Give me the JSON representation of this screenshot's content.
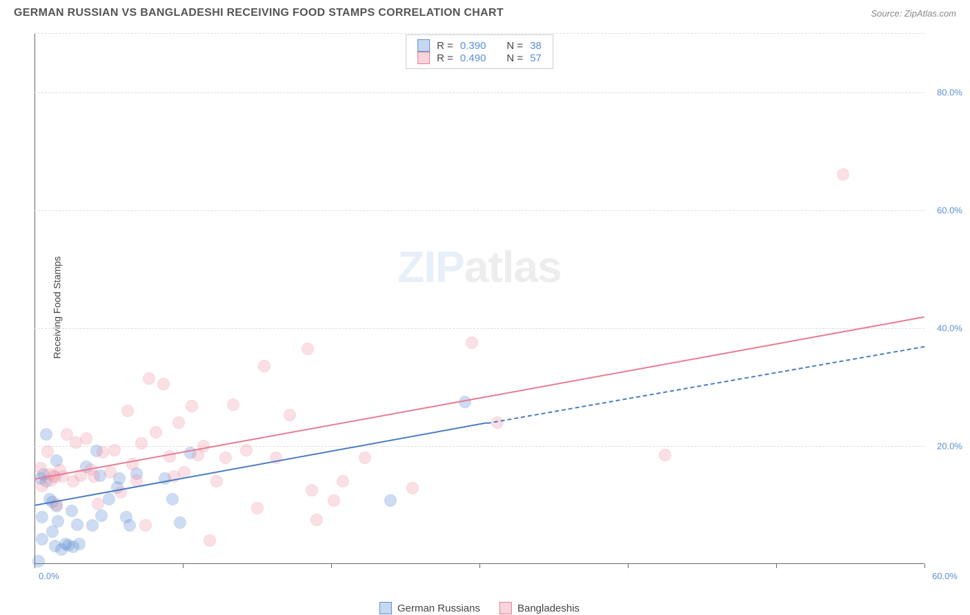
{
  "header": {
    "title": "GERMAN RUSSIAN VS BANGLADESHI RECEIVING FOOD STAMPS CORRELATION CHART",
    "source": "Source: ZipAtlas.com"
  },
  "watermark": {
    "part1": "ZIP",
    "part2": "atlas"
  },
  "y_axis": {
    "label": "Receiving Food Stamps"
  },
  "chart": {
    "type": "scatter",
    "xlim": [
      0,
      60
    ],
    "ylim": [
      0,
      90
    ],
    "x_ticks": [
      0,
      10,
      20,
      30,
      40,
      50,
      60
    ],
    "x_tick_labels": {
      "first": "0.0%",
      "last": "60.0%"
    },
    "y_grid": [
      20,
      40,
      60,
      80
    ],
    "y_tick_labels": [
      "20.0%",
      "40.0%",
      "60.0%",
      "80.0%"
    ],
    "grid_color": "#dddddd",
    "axis_color": "#666666",
    "background_color": "#ffffff",
    "marker_radius": 9,
    "marker_stroke_width": 1.5,
    "marker_fill_opacity": 0.3,
    "series": [
      {
        "name": "German Russians",
        "color": "#5b8fd6",
        "stroke": "#4a7bc2",
        "r_value": "0.390",
        "n_value": "38",
        "trend": {
          "x1": 0,
          "y1": 10,
          "x2": 30.5,
          "y2": 24,
          "dash_to_x": 60,
          "dash_to_y": 37
        },
        "points": [
          [
            0.3,
            0.5
          ],
          [
            0.4,
            14.5
          ],
          [
            0.5,
            8.0
          ],
          [
            0.5,
            4.2
          ],
          [
            0.6,
            15.2
          ],
          [
            0.8,
            22.0
          ],
          [
            0.8,
            14.0
          ],
          [
            1.0,
            11.0
          ],
          [
            1.2,
            5.5
          ],
          [
            1.2,
            10.5
          ],
          [
            1.4,
            3.0
          ],
          [
            1.5,
            17.5
          ],
          [
            1.5,
            9.8
          ],
          [
            1.6,
            7.3
          ],
          [
            1.8,
            2.4
          ],
          [
            2.1,
            3.4
          ],
          [
            2.3,
            3.2
          ],
          [
            2.5,
            9.0
          ],
          [
            2.6,
            2.9
          ],
          [
            2.9,
            6.7
          ],
          [
            3.0,
            3.4
          ],
          [
            3.5,
            16.5
          ],
          [
            3.9,
            6.5
          ],
          [
            4.2,
            19.2
          ],
          [
            4.4,
            15.0
          ],
          [
            4.5,
            8.2
          ],
          [
            5.0,
            11.0
          ],
          [
            5.6,
            13.0
          ],
          [
            5.7,
            14.5
          ],
          [
            6.2,
            8.0
          ],
          [
            6.4,
            6.5
          ],
          [
            6.9,
            15.3
          ],
          [
            8.8,
            14.5
          ],
          [
            9.3,
            11.0
          ],
          [
            9.8,
            7.0
          ],
          [
            10.5,
            18.8
          ],
          [
            24.0,
            10.8
          ],
          [
            29.0,
            27.5
          ]
        ]
      },
      {
        "name": "Bangladeshis",
        "color": "#f09aac",
        "stroke": "#e77b92",
        "r_value": "0.490",
        "n_value": "57",
        "trend": {
          "x1": 0,
          "y1": 14.5,
          "x2": 60,
          "y2": 42
        },
        "points": [
          [
            0.4,
            16.2
          ],
          [
            0.5,
            13.2
          ],
          [
            0.9,
            19.0
          ],
          [
            1.0,
            15.2
          ],
          [
            1.1,
            14.2
          ],
          [
            1.3,
            15.0
          ],
          [
            1.4,
            14.7
          ],
          [
            1.5,
            10.0
          ],
          [
            1.7,
            15.9
          ],
          [
            1.9,
            14.8
          ],
          [
            2.2,
            22.0
          ],
          [
            2.6,
            14.0
          ],
          [
            2.8,
            20.6
          ],
          [
            3.1,
            15.0
          ],
          [
            3.5,
            21.3
          ],
          [
            3.8,
            16.0
          ],
          [
            4.0,
            14.8
          ],
          [
            4.3,
            10.2
          ],
          [
            4.6,
            18.9
          ],
          [
            5.1,
            15.6
          ],
          [
            5.4,
            19.3
          ],
          [
            5.8,
            12.2
          ],
          [
            6.3,
            26.0
          ],
          [
            6.6,
            16.9
          ],
          [
            6.9,
            14.2
          ],
          [
            7.2,
            20.5
          ],
          [
            7.5,
            6.5
          ],
          [
            7.7,
            31.5
          ],
          [
            8.2,
            22.3
          ],
          [
            8.7,
            30.5
          ],
          [
            9.1,
            18.2
          ],
          [
            9.4,
            14.9
          ],
          [
            9.7,
            24.0
          ],
          [
            10.1,
            15.5
          ],
          [
            10.6,
            26.8
          ],
          [
            11.0,
            18.5
          ],
          [
            11.4,
            20.0
          ],
          [
            11.8,
            4.0
          ],
          [
            12.3,
            14.0
          ],
          [
            12.9,
            18.0
          ],
          [
            13.4,
            27.0
          ],
          [
            14.3,
            19.3
          ],
          [
            15.0,
            9.5
          ],
          [
            15.5,
            33.5
          ],
          [
            16.3,
            18.0
          ],
          [
            17.2,
            25.2
          ],
          [
            18.4,
            36.5
          ],
          [
            18.7,
            12.5
          ],
          [
            19.0,
            7.5
          ],
          [
            20.2,
            10.7
          ],
          [
            20.8,
            14.0
          ],
          [
            22.3,
            18.0
          ],
          [
            25.5,
            12.9
          ],
          [
            29.5,
            37.5
          ],
          [
            31.2,
            24.0
          ],
          [
            42.5,
            18.5
          ],
          [
            54.5,
            66.0
          ]
        ]
      }
    ]
  },
  "legend_top": {
    "rows": [
      {
        "swatch_fill": "#c6d8f0",
        "swatch_stroke": "#5b8fd6",
        "r_label": "R =",
        "r_val": "0.390",
        "n_label": "N =",
        "n_val": "38"
      },
      {
        "swatch_fill": "#f8d5dc",
        "swatch_stroke": "#e77b92",
        "r_label": "R =",
        "r_val": "0.490",
        "n_label": "N =",
        "n_val": "57"
      }
    ]
  },
  "legend_bottom": {
    "items": [
      {
        "swatch_fill": "#c6d8f0",
        "swatch_stroke": "#5b8fd6",
        "label": "German Russians"
      },
      {
        "swatch_fill": "#f8d5dc",
        "swatch_stroke": "#e77b92",
        "label": "Bangladeshis"
      }
    ]
  }
}
